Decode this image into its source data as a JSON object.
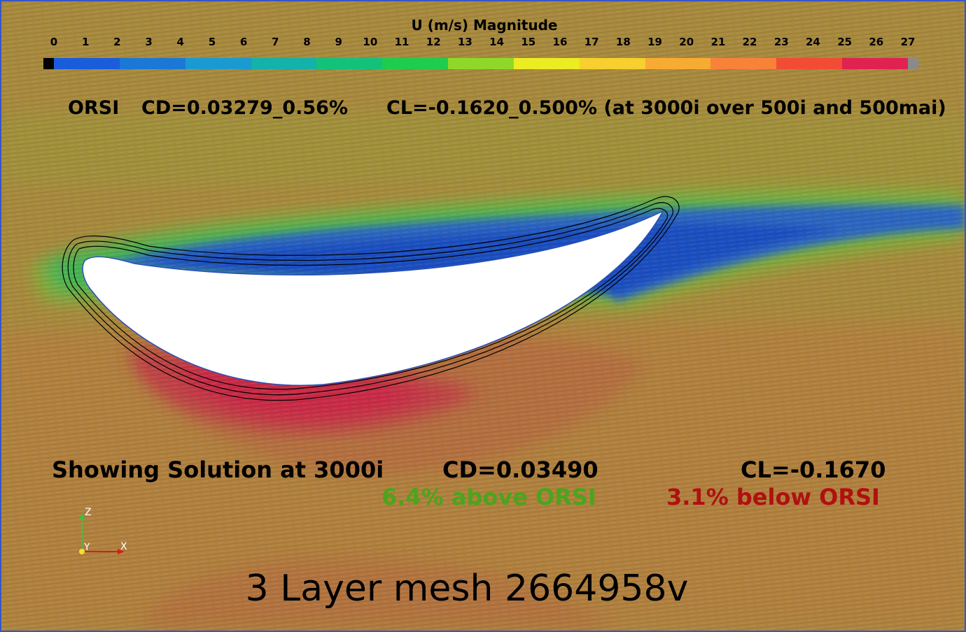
{
  "colorbar": {
    "title": "U (m/s) Magnitude",
    "ticks": [
      "0",
      "1",
      "2",
      "3",
      "4",
      "5",
      "6",
      "7",
      "8",
      "9",
      "10",
      "11",
      "12",
      "13",
      "14",
      "15",
      "16",
      "17",
      "18",
      "19",
      "20",
      "21",
      "22",
      "23",
      "24",
      "25",
      "26",
      "27"
    ],
    "below_range_color": "#000000",
    "above_range_color": "#8a8a8a",
    "colors": [
      "#1a5ddc",
      "#1b78d6",
      "#1a9ad0",
      "#13b2aa",
      "#12c27a",
      "#1fcc4e",
      "#8fd82a",
      "#ecec22",
      "#f7cf2e",
      "#f8ab32",
      "#f8823a",
      "#f24c34",
      "#e02250"
    ]
  },
  "reference": {
    "label": "ORSI",
    "cd": "CD=0.03279_0.56%",
    "cl": "CL=-0.1620_0.500% (at 3000i over 500i and 500mai)"
  },
  "solution": {
    "label": "Showing Solution at 3000i",
    "cd": "CD=0.03490",
    "cl": "CL=-0.1670",
    "cd_diff": "6.4% above ORSI",
    "cl_diff": "3.1% below ORSI",
    "cd_diff_color": "#4aa51c",
    "cl_diff_color": "#b01010"
  },
  "axes": {
    "z": "Z",
    "y": "Y",
    "x": "X"
  },
  "caption": "3 Layer mesh 2664958v"
}
